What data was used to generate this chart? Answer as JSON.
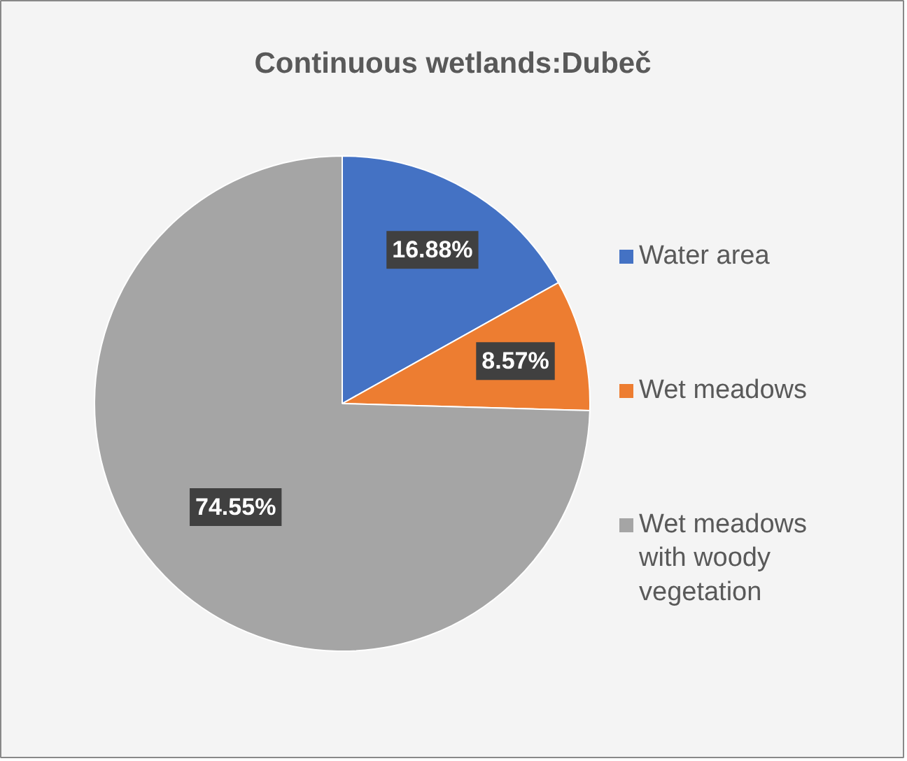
{
  "chart_data": {
    "type": "pie",
    "title": "Continuous wetlands:Dubeč",
    "categories": [
      "Water area",
      "Wet meadows",
      "Wet meadows with woody vegetation"
    ],
    "values": [
      16.88,
      8.57,
      74.55
    ],
    "colors": [
      "#4472c4",
      "#ed7d31",
      "#a5a5a5"
    ],
    "value_labels": [
      "16.88%",
      "8.57%",
      "74.55%"
    ],
    "legend": "right"
  }
}
